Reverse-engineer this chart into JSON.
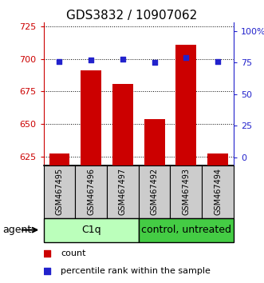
{
  "title": "GDS3832 / 10907062",
  "samples": [
    "GSM467495",
    "GSM467496",
    "GSM467497",
    "GSM467492",
    "GSM467493",
    "GSM467494"
  ],
  "counts": [
    627,
    691,
    681,
    654,
    711,
    627
  ],
  "percentiles": [
    75.5,
    77,
    78,
    75,
    79,
    75.5
  ],
  "ylim_left": [
    618,
    728
  ],
  "yticks_left": [
    625,
    650,
    675,
    700,
    725
  ],
  "ylim_right": [
    -6.67,
    106.67
  ],
  "yticks_right": [
    0,
    25,
    50,
    75,
    100
  ],
  "yticklabels_right": [
    "0",
    "25",
    "50",
    "75",
    "100%"
  ],
  "bar_color": "#cc0000",
  "dot_color": "#2222cc",
  "bar_width": 0.65,
  "group1_label": "C1q",
  "group2_label": "control, untreated",
  "group1_color": "#bbffbb",
  "group2_color": "#44cc44",
  "agent_label": "agent",
  "legend_count_label": "count",
  "legend_pct_label": "percentile rank within the sample",
  "title_fontsize": 11,
  "axis_color_left": "#cc0000",
  "axis_color_right": "#2222cc",
  "sample_box_color": "#cccccc",
  "tick_fontsize": 8
}
